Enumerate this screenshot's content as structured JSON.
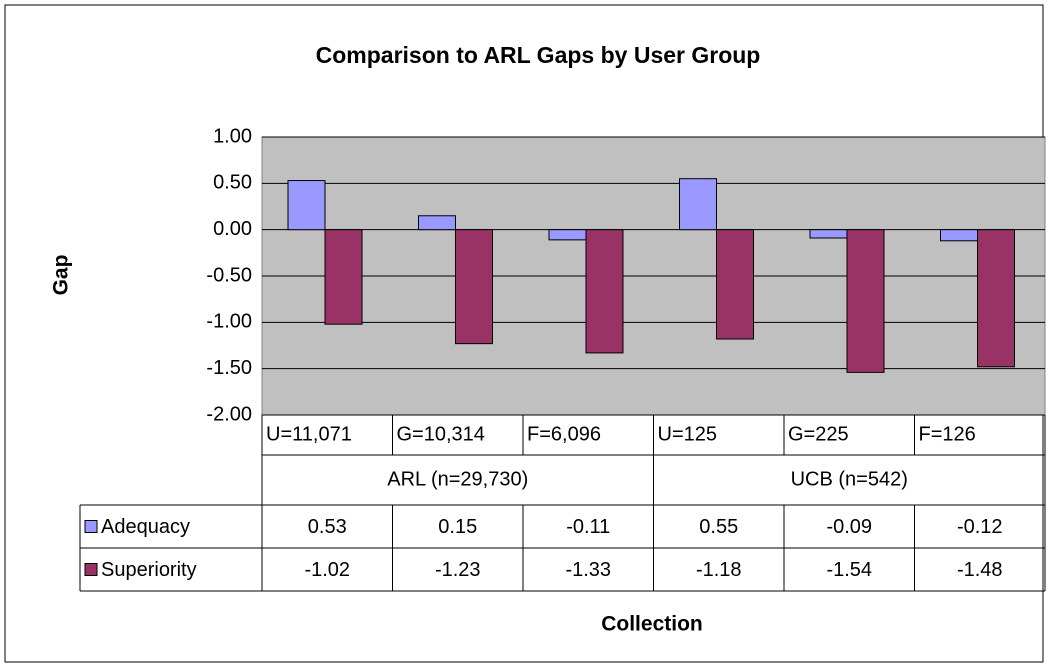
{
  "chart_data": {
    "type": "bar",
    "title": "Comparison to ARL Gaps by User Group",
    "y_label": "Gap",
    "x_label": "Collection",
    "categories": [
      "U=11,071",
      "G=10,314",
      "F=6,096",
      "U=125",
      "G=225",
      "F=126"
    ],
    "group_labels": [
      "ARL (n=29,730)",
      "UCB (n=542)"
    ],
    "series": [
      {
        "name": "Adequacy",
        "color": "#9999ff",
        "values": [
          0.53,
          0.15,
          -0.11,
          0.55,
          -0.09,
          -0.12
        ]
      },
      {
        "name": "Superiority",
        "color": "#993366",
        "values": [
          -1.02,
          -1.23,
          -1.33,
          -1.18,
          -1.54,
          -1.48
        ]
      }
    ],
    "ylim": [
      -2,
      1
    ],
    "yticks": [
      {
        "value": 1,
        "label": "1.00"
      },
      {
        "value": 0.5,
        "label": "0.50"
      },
      {
        "value": 0,
        "label": "0.00"
      },
      {
        "value": -0.5,
        "label": "-0.50"
      },
      {
        "value": -1,
        "label": "-1.00"
      },
      {
        "value": -1.5,
        "label": "-1.50"
      },
      {
        "value": -2,
        "label": "-2.00"
      }
    ],
    "grid": true,
    "plot_background": "#c0c0c0"
  }
}
